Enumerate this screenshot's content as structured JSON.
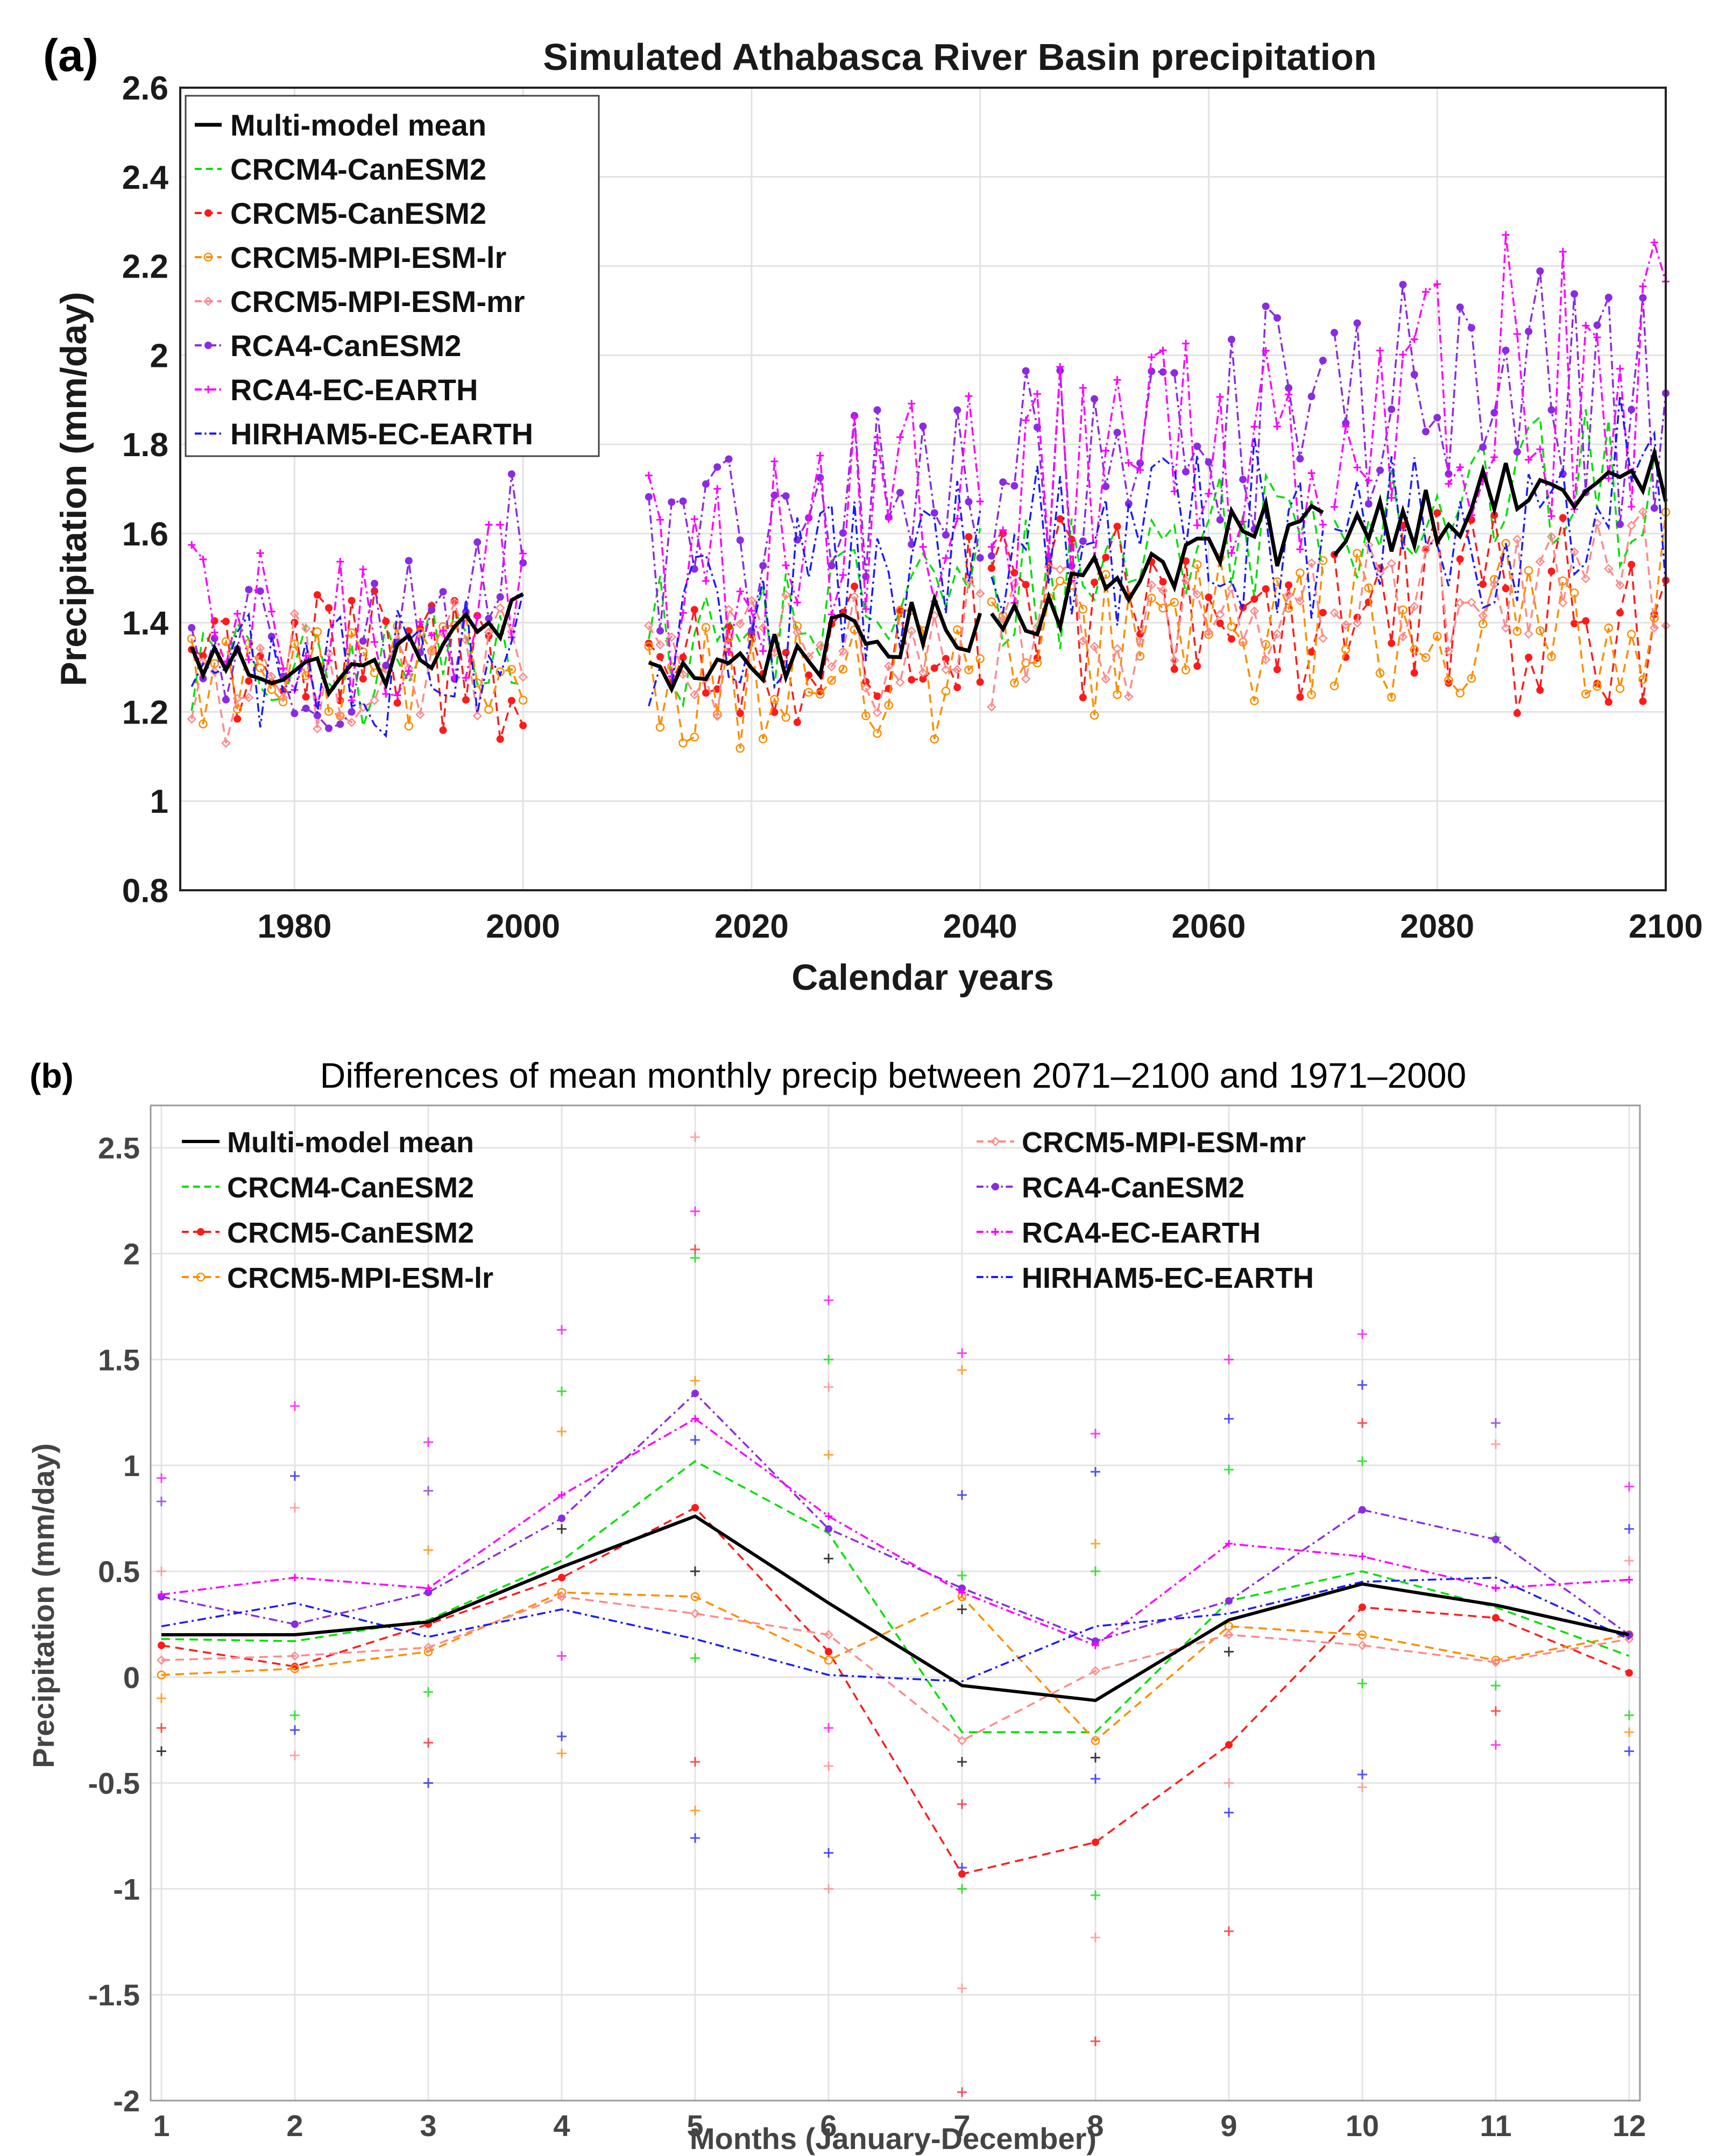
{
  "chart_data": [
    {
      "panel_label": "(a)",
      "type": "line",
      "title": "Simulated Athabasca River Basin precipitation",
      "xlabel": "Calendar years",
      "ylabel": "Precipitation (mm/day)",
      "xlim": [
        1970,
        2100
      ],
      "ylim": [
        0.8,
        2.6
      ],
      "xticks": [
        "1980",
        "2000",
        "2020",
        "2040",
        "2060",
        "2080",
        "2100"
      ],
      "yticks": [
        "0.8",
        "1",
        "1.2",
        "1.4",
        "1.6",
        "1.8",
        "2",
        "2.2",
        "2.4",
        "2.6"
      ],
      "grid": true,
      "legend_position": "top-left",
      "segments": [
        [
          1971,
          2000
        ],
        [
          2011,
          2040
        ],
        [
          2041,
          2070
        ],
        [
          2071,
          2100
        ]
      ],
      "series": [
        {
          "name": "Multi-model mean",
          "color": "#000000",
          "style": "solid",
          "marker": "none",
          "base": [
            1.32,
            1.28,
            1.42,
            1.29,
            1.35,
            1.42,
            1.55,
            1.62,
            1.68,
            1.72
          ],
          "amp": [
            0.06,
            0.05,
            0.06,
            0.06,
            0.07,
            0.07,
            0.08,
            0.08,
            0.08,
            0.08
          ]
        },
        {
          "name": "CRCM4-CanESM2",
          "color": "#00e000",
          "style": "dashed",
          "marker": "none",
          "base": [
            1.3,
            1.27,
            1.4,
            1.34,
            1.44,
            1.48,
            1.58,
            1.66,
            1.7,
            1.68
          ],
          "amp": [
            0.12,
            0.12,
            0.14,
            0.16,
            0.16,
            0.17,
            0.18,
            0.18,
            0.18,
            0.2
          ]
        },
        {
          "name": "CRCM5-CanESM2",
          "color": "#ff1a1a",
          "style": "dashed",
          "marker": "dot",
          "base": [
            1.35,
            1.3,
            1.32,
            1.3,
            1.32,
            1.4,
            1.45,
            1.42,
            1.4,
            1.38
          ],
          "amp": [
            0.18,
            0.18,
            0.2,
            0.2,
            0.2,
            0.22,
            0.22,
            0.25,
            0.25,
            0.25
          ]
        },
        {
          "name": "CRCM5-MPI-ESM-lr",
          "color": "#ff8c00",
          "style": "dashed",
          "marker": "circle",
          "base": [
            1.28,
            1.26,
            1.3,
            1.28,
            1.25,
            1.32,
            1.38,
            1.4,
            1.38,
            1.45
          ],
          "amp": [
            0.12,
            0.12,
            0.14,
            0.15,
            0.16,
            0.16,
            0.17,
            0.18,
            0.2,
            0.2
          ]
        },
        {
          "name": "CRCM5-MPI-ESM-mr",
          "color": "#ff8a8a",
          "style": "dashed",
          "marker": "diamond",
          "base": [
            1.26,
            1.3,
            1.32,
            1.3,
            1.33,
            1.36,
            1.4,
            1.44,
            1.45,
            1.48
          ],
          "amp": [
            0.14,
            0.14,
            0.14,
            0.15,
            0.15,
            0.16,
            0.16,
            0.17,
            0.18,
            0.18
          ]
        },
        {
          "name": "RCA4-CanESM2",
          "color": "#8a2be2",
          "style": "dashdot",
          "marker": "dot",
          "base": [
            1.35,
            1.33,
            1.55,
            1.5,
            1.65,
            1.72,
            1.82,
            1.9,
            1.92,
            1.9
          ],
          "amp": [
            0.18,
            0.18,
            0.22,
            0.22,
            0.24,
            0.24,
            0.25,
            0.26,
            0.28,
            0.3
          ]
        },
        {
          "name": "RCA4-EC-EARTH",
          "color": "#ff00ff",
          "style": "dashdot",
          "marker": "plus",
          "base": [
            1.38,
            1.34,
            1.52,
            1.5,
            1.62,
            1.7,
            1.8,
            1.88,
            1.95,
            1.98
          ],
          "amp": [
            0.2,
            0.2,
            0.22,
            0.24,
            0.26,
            0.28,
            0.3,
            0.3,
            0.32,
            0.32
          ]
        },
        {
          "name": "HIRHAM5-EC-EARTH",
          "color": "#1a1aff",
          "style": "dashdot",
          "marker": "none",
          "base": [
            1.3,
            1.28,
            1.4,
            1.36,
            1.48,
            1.55,
            1.6,
            1.62,
            1.65,
            1.7
          ],
          "amp": [
            0.16,
            0.16,
            0.18,
            0.18,
            0.2,
            0.2,
            0.2,
            0.22,
            0.22,
            0.24
          ]
        }
      ]
    },
    {
      "panel_label": "(b)",
      "type": "line",
      "title": "Differences of mean monthly precip between 2071–2100 and 1971–2000",
      "xlabel": "Months (January-December)",
      "ylabel": "Precipitation (mm/day)",
      "xlim": [
        1,
        12
      ],
      "ylim": [
        -2,
        2.7
      ],
      "xticks": [
        "1",
        "2",
        "3",
        "4",
        "5",
        "6",
        "7",
        "8",
        "9",
        "10",
        "11",
        "12"
      ],
      "yticks": [
        "-2",
        "-1.5",
        "-1",
        "-0.5",
        "0",
        "0.5",
        "1",
        "1.5",
        "2",
        "2.5"
      ],
      "grid": true,
      "legend_position": "top",
      "x": [
        1,
        2,
        3,
        4,
        5,
        6,
        7,
        8,
        9,
        10,
        11,
        12
      ],
      "series": [
        {
          "name": "Multi-model mean",
          "color": "#000000",
          "style": "solid",
          "marker": "none",
          "values": [
            0.2,
            0.2,
            0.26,
            0.52,
            0.76,
            0.35,
            -0.04,
            -0.11,
            0.27,
            0.44,
            0.34,
            0.2
          ]
        },
        {
          "name": "CRCM4-CanESM2",
          "color": "#00e000",
          "style": "dashed",
          "marker": "none",
          "values": [
            0.18,
            0.17,
            0.27,
            0.55,
            1.02,
            0.68,
            -0.26,
            -0.26,
            0.36,
            0.5,
            0.33,
            0.1
          ]
        },
        {
          "name": "CRCM5-CanESM2",
          "color": "#ff1a1a",
          "style": "dashed",
          "marker": "dot",
          "values": [
            0.15,
            0.05,
            0.25,
            0.47,
            0.8,
            0.12,
            -0.93,
            -0.78,
            -0.32,
            0.33,
            0.28,
            0.02
          ]
        },
        {
          "name": "CRCM5-MPI-ESM-lr",
          "color": "#ff8c00",
          "style": "dashed",
          "marker": "circle",
          "values": [
            0.01,
            0.04,
            0.12,
            0.4,
            0.38,
            0.08,
            0.38,
            -0.3,
            0.24,
            0.2,
            0.08,
            0.2
          ]
        },
        {
          "name": "CRCM5-MPI-ESM-mr",
          "color": "#ff8a8a",
          "style": "dashed",
          "marker": "diamond",
          "values": [
            0.08,
            0.1,
            0.14,
            0.38,
            0.3,
            0.2,
            -0.3,
            0.03,
            0.2,
            0.15,
            0.07,
            0.18
          ]
        },
        {
          "name": "RCA4-CanESM2",
          "color": "#8a2be2",
          "style": "dashdot",
          "marker": "dot",
          "values": [
            0.38,
            0.25,
            0.4,
            0.75,
            1.34,
            0.7,
            0.42,
            0.17,
            0.36,
            0.79,
            0.65,
            0.2
          ]
        },
        {
          "name": "RCA4-EC-EARTH",
          "color": "#ff00ff",
          "style": "dashdot",
          "marker": "plus",
          "values": [
            0.39,
            0.47,
            0.42,
            0.86,
            1.22,
            0.76,
            0.4,
            0.15,
            0.63,
            0.57,
            0.42,
            0.46
          ]
        },
        {
          "name": "HIRHAM5-EC-EARTH",
          "color": "#1a1aff",
          "style": "dashdot",
          "marker": "none",
          "values": [
            0.24,
            0.35,
            0.19,
            0.32,
            0.18,
            0.01,
            -0.02,
            0.24,
            0.3,
            0.45,
            0.47,
            0.18
          ]
        }
      ],
      "scatter_points": [
        [
          1,
          0.94,
          "#ff00ff"
        ],
        [
          1,
          0.83,
          "#8a2be2"
        ],
        [
          1,
          0.5,
          "#ff8a8a"
        ],
        [
          1,
          -0.1,
          "#ff8c00"
        ],
        [
          1,
          -0.24,
          "#ff1a1a"
        ],
        [
          1,
          -0.35,
          "#000000"
        ],
        [
          2,
          1.28,
          "#ff00ff"
        ],
        [
          2,
          0.95,
          "#1a1aff"
        ],
        [
          2,
          0.8,
          "#ff8a8a"
        ],
        [
          2,
          -0.18,
          "#00e000"
        ],
        [
          2,
          -0.25,
          "#1a1aff"
        ],
        [
          2,
          -0.37,
          "#ff8a8a"
        ],
        [
          3,
          1.11,
          "#ff00ff"
        ],
        [
          3,
          0.88,
          "#8a2be2"
        ],
        [
          3,
          0.6,
          "#ff8c00"
        ],
        [
          3,
          -0.07,
          "#00e000"
        ],
        [
          3,
          -0.31,
          "#ff1a1a"
        ],
        [
          3,
          -0.5,
          "#1a1aff"
        ],
        [
          4,
          1.64,
          "#ff00ff"
        ],
        [
          4,
          1.35,
          "#00e000"
        ],
        [
          4,
          1.16,
          "#ff8c00"
        ],
        [
          4,
          0.7,
          "#000000"
        ],
        [
          4,
          0.1,
          "#ff00ff"
        ],
        [
          4,
          -0.28,
          "#1a1aff"
        ],
        [
          4,
          -0.36,
          "#ff8c00"
        ],
        [
          5,
          2.55,
          "#ff8a8a"
        ],
        [
          5,
          2.2,
          "#ff00ff"
        ],
        [
          5,
          2.02,
          "#ff1a1a"
        ],
        [
          5,
          1.98,
          "#00e000"
        ],
        [
          5,
          1.4,
          "#ff8c00"
        ],
        [
          5,
          1.12,
          "#1a1aff"
        ],
        [
          5,
          0.5,
          "#000000"
        ],
        [
          5,
          0.09,
          "#00e000"
        ],
        [
          5,
          -0.4,
          "#ff1a1a"
        ],
        [
          5,
          -0.63,
          "#ff8c00"
        ],
        [
          5,
          -0.76,
          "#1a1aff"
        ],
        [
          6,
          1.78,
          "#ff00ff"
        ],
        [
          6,
          1.5,
          "#00e000"
        ],
        [
          6,
          1.37,
          "#ff8a8a"
        ],
        [
          6,
          1.05,
          "#ff8c00"
        ],
        [
          6,
          0.56,
          "#000000"
        ],
        [
          6,
          -0.24,
          "#ff00ff"
        ],
        [
          6,
          -0.42,
          "#ff8a8a"
        ],
        [
          6,
          -0.83,
          "#1a1aff"
        ],
        [
          6,
          -1.0,
          "#ff8a8a"
        ],
        [
          7,
          1.53,
          "#ff00ff"
        ],
        [
          7,
          1.45,
          "#ff8c00"
        ],
        [
          7,
          0.86,
          "#1a1aff"
        ],
        [
          7,
          0.48,
          "#00e000"
        ],
        [
          7,
          0.32,
          "#000000"
        ],
        [
          7,
          -0.4,
          "#000000"
        ],
        [
          7,
          -0.6,
          "#ff1a1a"
        ],
        [
          7,
          -0.9,
          "#1a1aff"
        ],
        [
          7,
          -1.0,
          "#00e000"
        ],
        [
          7,
          -1.47,
          "#ff8a8a"
        ],
        [
          7,
          -1.96,
          "#ff1a1a"
        ],
        [
          8,
          1.15,
          "#ff00ff"
        ],
        [
          8,
          0.97,
          "#1a1aff"
        ],
        [
          8,
          0.63,
          "#ff8c00"
        ],
        [
          8,
          0.5,
          "#00e000"
        ],
        [
          8,
          -0.38,
          "#000000"
        ],
        [
          8,
          -0.48,
          "#1a1aff"
        ],
        [
          8,
          -1.03,
          "#00e000"
        ],
        [
          8,
          -1.23,
          "#ff8a8a"
        ],
        [
          8,
          -1.72,
          "#ff1a1a"
        ],
        [
          9,
          1.5,
          "#ff00ff"
        ],
        [
          9,
          1.22,
          "#1a1aff"
        ],
        [
          9,
          0.98,
          "#00e000"
        ],
        [
          9,
          0.12,
          "#000000"
        ],
        [
          9,
          -0.5,
          "#ff8a8a"
        ],
        [
          9,
          -0.64,
          "#1a1aff"
        ],
        [
          9,
          -1.2,
          "#ff1a1a"
        ],
        [
          10,
          1.62,
          "#ff00ff"
        ],
        [
          10,
          1.38,
          "#1a1aff"
        ],
        [
          10,
          1.2,
          "#ff1a1a"
        ],
        [
          10,
          1.02,
          "#00e000"
        ],
        [
          10,
          -0.03,
          "#00e000"
        ],
        [
          10,
          -0.46,
          "#1a1aff"
        ],
        [
          10,
          -0.52,
          "#ff8a8a"
        ],
        [
          11,
          1.2,
          "#8a2be2"
        ],
        [
          11,
          1.1,
          "#ff8a8a"
        ],
        [
          11,
          0.66,
          "#00e000"
        ],
        [
          11,
          -0.04,
          "#00e000"
        ],
        [
          11,
          -0.16,
          "#ff1a1a"
        ],
        [
          11,
          -0.32,
          "#ff00ff"
        ],
        [
          12,
          0.9,
          "#ff00ff"
        ],
        [
          12,
          0.7,
          "#1a1aff"
        ],
        [
          12,
          0.55,
          "#ff8a8a"
        ],
        [
          12,
          -0.18,
          "#00e000"
        ],
        [
          12,
          -0.26,
          "#ff8c00"
        ],
        [
          12,
          -0.35,
          "#1a1aff"
        ]
      ]
    }
  ]
}
